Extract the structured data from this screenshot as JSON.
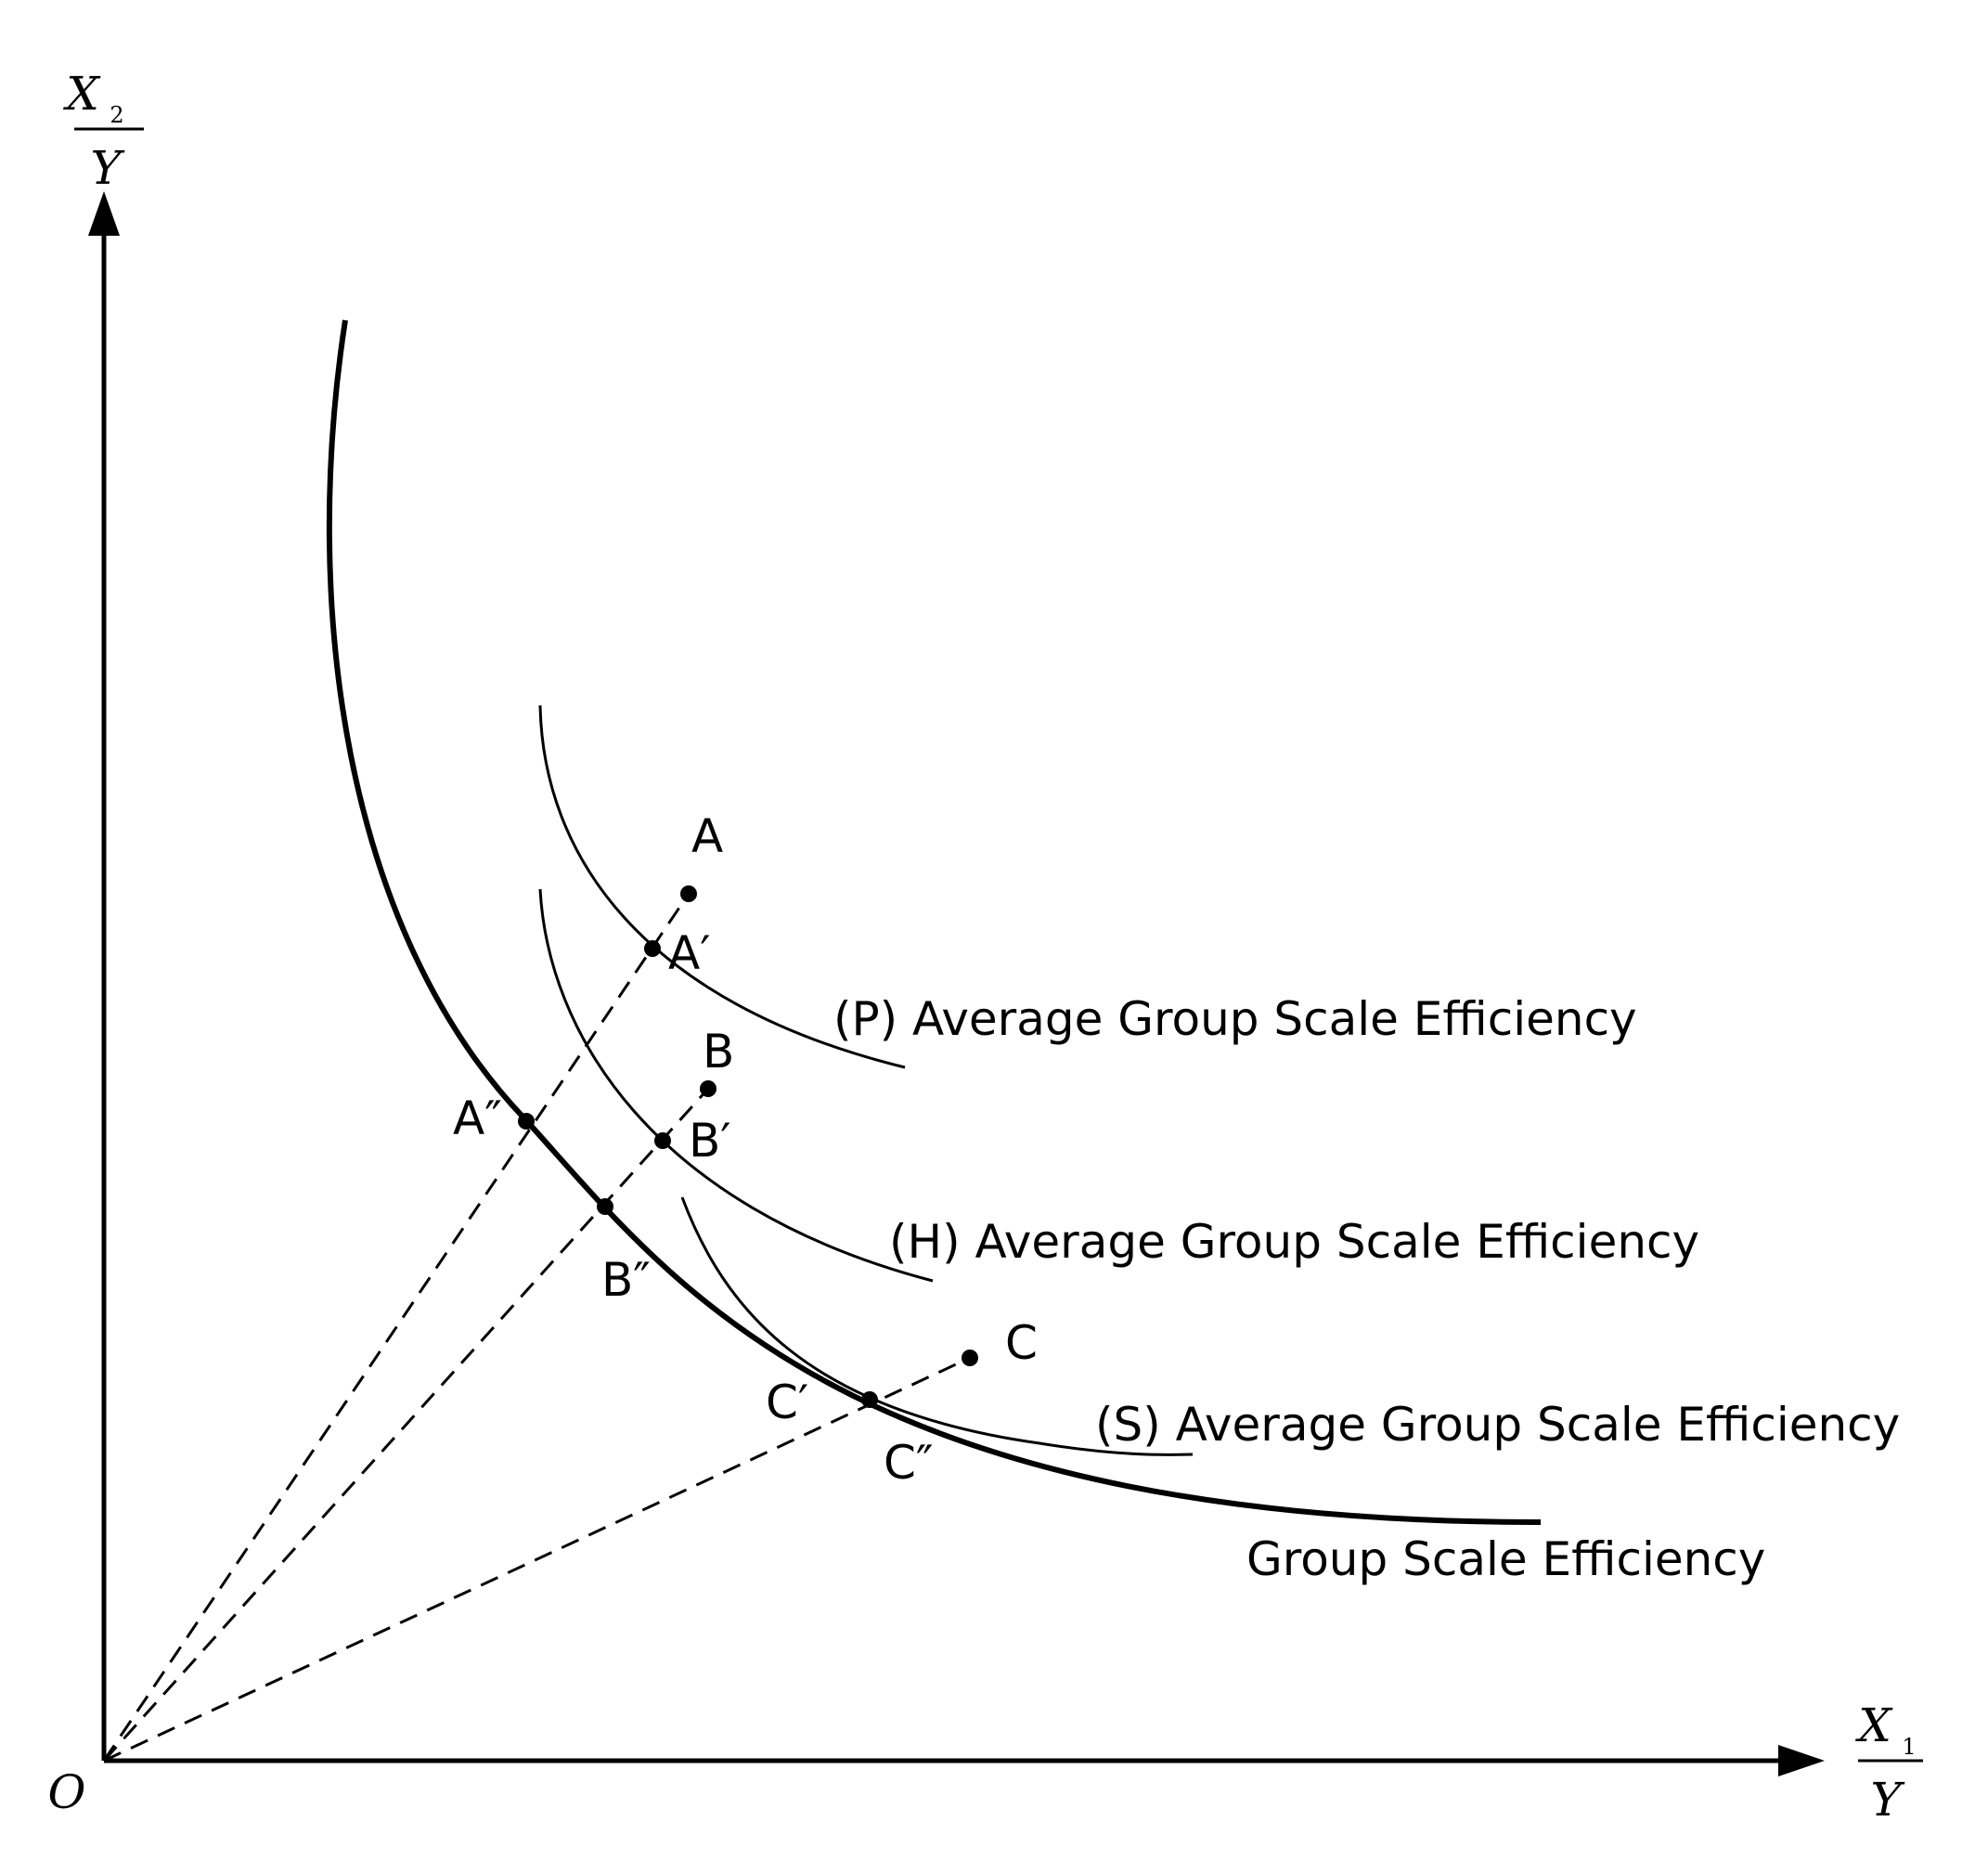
{
  "axes": {
    "y_numerator": "X",
    "y_subscript": "2",
    "y_denominator": "Y",
    "x_numerator": "X",
    "x_subscript": "1",
    "x_denominator": "Y",
    "origin": "O"
  },
  "points": {
    "A": "A",
    "A_prime": "A′",
    "A_dprime": "A″",
    "B": "B",
    "B_prime": "B′",
    "B_dprime": "B″",
    "C": "C",
    "C_prime": "C′",
    "C_dprime": "C″"
  },
  "curves": {
    "P": "(P) Average Group Scale Efficiency",
    "H": "(H) Average Group Scale Efficiency",
    "S": "(S) Average Group Scale Efficiency",
    "frontier": "Group Scale Efficiency"
  }
}
